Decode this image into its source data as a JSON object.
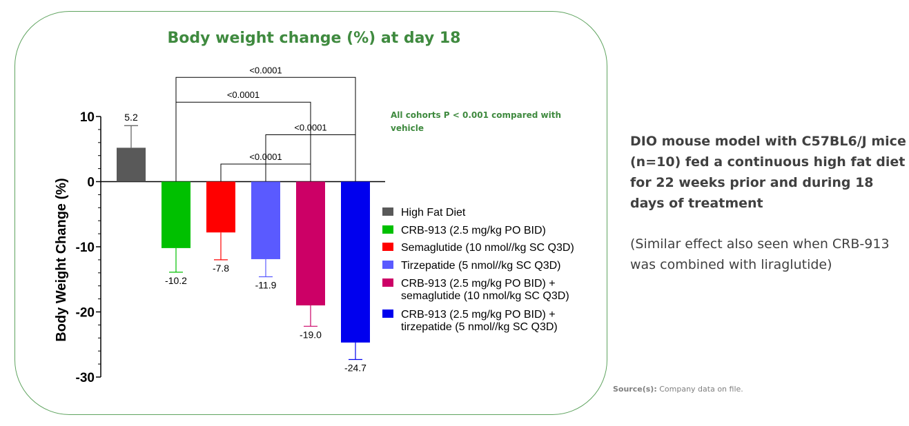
{
  "chart_data": {
    "type": "bar",
    "title": "Body weight change (%) at day 18",
    "ylabel": "Body Weight Change (%)",
    "xlabel": "",
    "ylim": [
      -30,
      10
    ],
    "yticks": [
      10,
      0,
      -10,
      -20,
      -30
    ],
    "yticks_labels": [
      "10",
      "0",
      "-10",
      "-20",
      "-30"
    ],
    "categories": [
      "High Fat Diet",
      "CRB-913 (2.5 mg/kg PO BID)",
      "Semaglutide (10 nmol//kg SC Q3D)",
      "Tirzepatide (5 nmol//kg SC Q3D)",
      "CRB-913 (2.5 mg/kg PO BID) + semaglutide  (10 nmol/kg SC Q3D)",
      "CRB-913 (2.5 mg/kg PO BID) + tirzepatide (5 nmol//kg SC Q3D)"
    ],
    "legend": [
      {
        "lines": [
          "High Fat Diet"
        ],
        "color": "#595959"
      },
      {
        "lines": [
          "CRB-913 (2.5 mg/kg PO BID)"
        ],
        "color": "#00c000"
      },
      {
        "lines": [
          "Semaglutide (10 nmol//kg SC Q3D)"
        ],
        "color": "#ff0000"
      },
      {
        "lines": [
          "Tirzepatide (5 nmol//kg SC Q3D)"
        ],
        "color": "#5a5aff"
      },
      {
        "lines": [
          "CRB-913 (2.5 mg/kg PO BID) +",
          "semaglutide  (10 nmol/kg SC Q3D)"
        ],
        "color": "#cc0066"
      },
      {
        "lines": [
          "CRB-913 (2.5 mg/kg PO BID) +",
          "tirzepatide (5 nmol//kg SC Q3D)"
        ],
        "color": "#0000ee"
      }
    ],
    "values": [
      5.2,
      -10.2,
      -7.8,
      -11.9,
      -19.0,
      -24.7
    ],
    "value_labels": [
      "5.2",
      "-10.2",
      "-7.8",
      "-11.9",
      "-19.0",
      "-24.7"
    ],
    "error_ends": [
      8.6,
      -13.9,
      -12.0,
      -14.6,
      -22.2,
      -27.3
    ],
    "colors": [
      "#595959",
      "#00c000",
      "#ff0000",
      "#5a5aff",
      "#cc0066",
      "#0000ee"
    ],
    "comparisons": [
      {
        "from": 1,
        "to": 5,
        "label": "<0.0001",
        "level": 16
      },
      {
        "from": 1,
        "to": 4,
        "label": "<0.0001",
        "level": 12.2
      },
      {
        "from": 3,
        "to": 5,
        "label": "<0.0001",
        "level": 7.2
      },
      {
        "from": 2,
        "to": 4,
        "label": "<0.0001",
        "level": 2.7
      }
    ],
    "annotation": [
      "All cohorts P < 0.001 compared with",
      "vehicle"
    ],
    "legend_position": "right"
  },
  "side_panel": {
    "description": "DIO mouse model with C57BL6/J mice (n=10) fed a continuous high fat diet for 22 weeks prior and during 18 days of treatment",
    "note": "(Similar effect also seen when CRB-913 was combined with liraglutide)"
  },
  "source": {
    "label": "Source(s):",
    "text": "Company data on file."
  }
}
